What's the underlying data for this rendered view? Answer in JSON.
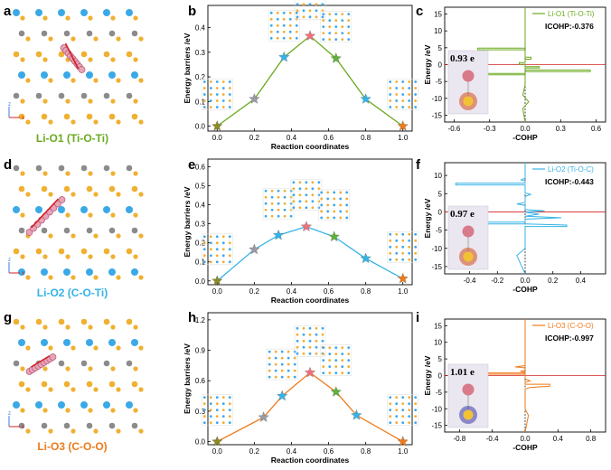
{
  "colors": {
    "li_o1": "#6aaa1e",
    "li_o2": "#35b3e8",
    "li_o3": "#ee7a1a",
    "star_gray": "#9a9aa6",
    "star_pink": "#f0707a",
    "star_green": "#5fb13a",
    "star_orange": "#ee7a1a",
    "star_olive": "#8d8a20",
    "atom_blue": "#3aa9e6",
    "atom_gray": "#8b8b8b",
    "atom_yellow": "#f0b030"
  },
  "panels": [
    {
      "structure_letter": "a",
      "structure_label": "Li-O1 (Ti-O-Ti)",
      "structure_label_color": "#6aaa1e",
      "axes_label": "x",
      "axes_label_z": "z",
      "barrier_letter": "b",
      "barrier_color": "#6aaa1e",
      "cohp_letter": "c",
      "cohp_color": "#6aaa1e",
      "cohp_legend": "Li-O1 (Ti-O-Ti)",
      "icohp": "ICOHP:-0.376",
      "charge": "0.93 e"
    },
    {
      "structure_letter": "d",
      "structure_label": "Li-O2 (C-O-Ti)",
      "structure_label_color": "#35b3e8",
      "axes_label": "x",
      "axes_label_z": "z",
      "barrier_letter": "e",
      "barrier_color": "#35b3e8",
      "cohp_letter": "f",
      "cohp_color": "#35b3e8",
      "cohp_legend": "Li-O2 (Ti-O-C)",
      "icohp": "ICOHP:-0.443",
      "charge": "0.97 e"
    },
    {
      "structure_letter": "g",
      "structure_label": "Li-O3 (C-O-O)",
      "structure_label_color": "#ee7a1a",
      "axes_label": "x",
      "axes_label_z": "z",
      "barrier_letter": "h",
      "barrier_color": "#ee7a1a",
      "cohp_letter": "i",
      "cohp_color": "#ee7a1a",
      "cohp_legend": "Li-O3 (C-O-O)",
      "icohp": "ICOHP:-0.997",
      "charge": "1.01 e"
    }
  ],
  "chart_data": [
    {
      "type": "line",
      "panel": "b",
      "xlabel": "Reaction coordinates",
      "ylabel": "Energy barriers /eV",
      "xlim": [
        -0.05,
        1.05
      ],
      "ylim": [
        -0.02,
        0.49
      ],
      "xticks": [
        "0.0",
        "0.2",
        "0.4",
        "0.6",
        "0.8",
        "1.0"
      ],
      "yticks": [
        "0.0",
        "0.1",
        "0.2",
        "0.3",
        "0.4"
      ],
      "x": [
        0.0,
        0.2,
        0.36,
        0.5,
        0.64,
        0.8,
        1.0
      ],
      "y": [
        0.0,
        0.11,
        0.28,
        0.366,
        0.275,
        0.11,
        0.0
      ],
      "marker_colors": [
        "#8d8a20",
        "#9a9aa6",
        "#35b3e8",
        "#f0707a",
        "#5fb13a",
        "#35b3e8",
        "#ee7a1a"
      ]
    },
    {
      "type": "line",
      "panel": "e",
      "xlabel": "Reaction coordinates",
      "ylabel": "Energy barriers /eV",
      "xlim": [
        -0.05,
        1.05
      ],
      "ylim": [
        -0.02,
        0.64
      ],
      "xticks": [
        "0.0",
        "0.2",
        "0.4",
        "0.6",
        "0.8",
        "1.0"
      ],
      "yticks": [
        "0.0",
        "0.1",
        "0.2",
        "0.3",
        "0.4",
        "0.5",
        "0.6"
      ],
      "x": [
        0.0,
        0.2,
        0.33,
        0.48,
        0.63,
        0.8,
        1.0
      ],
      "y": [
        0.0,
        0.165,
        0.24,
        0.285,
        0.232,
        0.118,
        0.012
      ],
      "marker_colors": [
        "#8d8a20",
        "#9a9aa6",
        "#35b3e8",
        "#f0707a",
        "#5fb13a",
        "#35b3e8",
        "#ee7a1a"
      ]
    },
    {
      "type": "line",
      "panel": "h",
      "xlabel": "Reaction coordinates",
      "ylabel": "Energy barriers /eV",
      "xlim": [
        -0.05,
        1.05
      ],
      "ylim": [
        -0.03,
        1.27
      ],
      "xticks": [
        "0.0",
        "0.2",
        "0.4",
        "0.6",
        "0.8",
        "1.0"
      ],
      "yticks": [
        "0.0",
        "0.3",
        "0.6",
        "0.9",
        "1.2"
      ],
      "x": [
        0.0,
        0.25,
        0.35,
        0.5,
        0.64,
        0.75,
        1.0
      ],
      "y": [
        0.0,
        0.24,
        0.45,
        0.68,
        0.49,
        0.26,
        0.0
      ],
      "marker_colors": [
        "#8d8a20",
        "#9a9aa6",
        "#35b3e8",
        "#f0707a",
        "#5fb13a",
        "#35b3e8",
        "#ee7a1a"
      ]
    },
    {
      "type": "line",
      "panel": "c",
      "xlabel": "-COHP",
      "ylabel": "Energy /eV",
      "xlim": [
        -0.68,
        0.68
      ],
      "ylim": [
        -17,
        17
      ],
      "xticks": [
        "-0.6",
        "-0.3",
        "0.0",
        "0.3",
        "0.6"
      ],
      "yticks": [
        "-15",
        "-10",
        "-5",
        "0",
        "5",
        "10",
        "15"
      ],
      "x": [
        0,
        0,
        -0.4,
        -0.4,
        0,
        0,
        0.05,
        0.05,
        0,
        0,
        -0.05,
        -0.05,
        0,
        0,
        0.12,
        0.12,
        0,
        0,
        0.55,
        0.55,
        0,
        0,
        -0.6,
        -0.6,
        0,
        0,
        -0.02,
        0.03,
        -0.02,
        0
      ],
      "y": [
        17,
        4.9,
        4.9,
        4.4,
        4.4,
        2.2,
        2.2,
        1.6,
        1.6,
        0.6,
        0.6,
        0.1,
        0.1,
        -0.6,
        -0.6,
        -1.0,
        -1.0,
        -1.6,
        -1.6,
        -2.1,
        -2.1,
        -2.6,
        -2.6,
        -3.0,
        -3.0,
        -6,
        -9,
        -11,
        -13,
        -17
      ]
    },
    {
      "type": "line",
      "panel": "f",
      "xlabel": "-COHP",
      "ylabel": "Energy /eV",
      "xlim": [
        -0.58,
        0.58
      ],
      "ylim": [
        -17,
        13.5
      ],
      "xticks": [
        "-0.4",
        "-0.2",
        "0.0",
        "0.2",
        "0.4"
      ],
      "yticks": [
        "-15",
        "-10",
        "-5",
        "0",
        "5",
        "10"
      ],
      "x": [
        0,
        0,
        -0.03,
        0,
        0,
        -0.5,
        -0.5,
        0,
        0,
        0.04,
        0,
        0,
        -0.06,
        0,
        0,
        0.14,
        0,
        0.1,
        0,
        0.26,
        0,
        0,
        -0.44,
        -0.44,
        0,
        0.3,
        0.3,
        0,
        0,
        -0.06,
        0
      ],
      "y": [
        13.5,
        9.2,
        8.8,
        8.5,
        7.9,
        7.9,
        7.4,
        7.4,
        5.2,
        4.8,
        4.2,
        2.6,
        2.2,
        1.8,
        0.6,
        0.3,
        -0.1,
        -0.6,
        -1.2,
        -1.6,
        -2.0,
        -2.8,
        -2.8,
        -3.3,
        -3.3,
        -3.6,
        -4.0,
        -4.0,
        -10,
        -12,
        -17
      ]
    },
    {
      "type": "line",
      "panel": "i",
      "xlabel": "-COHP",
      "ylabel": "Energy /eV",
      "xlim": [
        -0.98,
        0.98
      ],
      "ylim": [
        -17,
        17
      ],
      "xticks": [
        "-0.8",
        "-0.4",
        "0.0",
        "0.4",
        "0.8"
      ],
      "yticks": [
        "-15",
        "-10",
        "-5",
        "0",
        "5",
        "10",
        "15"
      ],
      "x": [
        0,
        0,
        -0.12,
        0,
        0,
        -0.06,
        0,
        0,
        -0.85,
        -0.85,
        0,
        0,
        0.06,
        0,
        0,
        0.3,
        0.3,
        0.06,
        0,
        0,
        0.04,
        0
      ],
      "y": [
        17,
        3.0,
        2.6,
        2.3,
        1.6,
        1.3,
        1.0,
        0.8,
        0.8,
        0.4,
        0.4,
        -1.0,
        -1.6,
        -2.0,
        -2.6,
        -2.6,
        -3.2,
        -3.6,
        -4.0,
        -10,
        -12,
        -17
      ]
    }
  ]
}
